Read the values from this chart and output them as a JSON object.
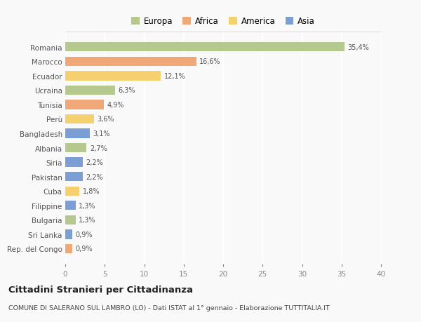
{
  "countries": [
    "Romania",
    "Marocco",
    "Ecuador",
    "Ucraina",
    "Tunisia",
    "Perù",
    "Bangladesh",
    "Albania",
    "Siria",
    "Pakistan",
    "Cuba",
    "Filippine",
    "Bulgaria",
    "Sri Lanka",
    "Rep. del Congo"
  ],
  "values": [
    35.4,
    16.6,
    12.1,
    6.3,
    4.9,
    3.6,
    3.1,
    2.7,
    2.2,
    2.2,
    1.8,
    1.3,
    1.3,
    0.9,
    0.9
  ],
  "labels": [
    "35,4%",
    "16,6%",
    "12,1%",
    "6,3%",
    "4,9%",
    "3,6%",
    "3,1%",
    "2,7%",
    "2,2%",
    "2,2%",
    "1,8%",
    "1,3%",
    "1,3%",
    "0,9%",
    "0,9%"
  ],
  "colors": [
    "#b5c98e",
    "#f0a878",
    "#f5d06e",
    "#b5c98e",
    "#f0a878",
    "#f5d06e",
    "#7b9fd4",
    "#b5c98e",
    "#7b9fd4",
    "#7b9fd4",
    "#f5d06e",
    "#7b9fd4",
    "#b5c98e",
    "#7b9fd4",
    "#f0a878"
  ],
  "legend_labels": [
    "Europa",
    "Africa",
    "America",
    "Asia"
  ],
  "legend_colors": [
    "#b5c98e",
    "#f0a878",
    "#f5d06e",
    "#7b9fd4"
  ],
  "title": "Cittadini Stranieri per Cittadinanza",
  "subtitle": "COMUNE DI SALERANO SUL LAMBRO (LO) - Dati ISTAT al 1° gennaio - Elaborazione TUTTITALIA.IT",
  "xlim": [
    0,
    40
  ],
  "xticks": [
    0,
    5,
    10,
    15,
    20,
    25,
    30,
    35,
    40
  ],
  "background_color": "#f9f9f9",
  "plot_background": "#f9f9f9",
  "grid_color": "#ffffff"
}
